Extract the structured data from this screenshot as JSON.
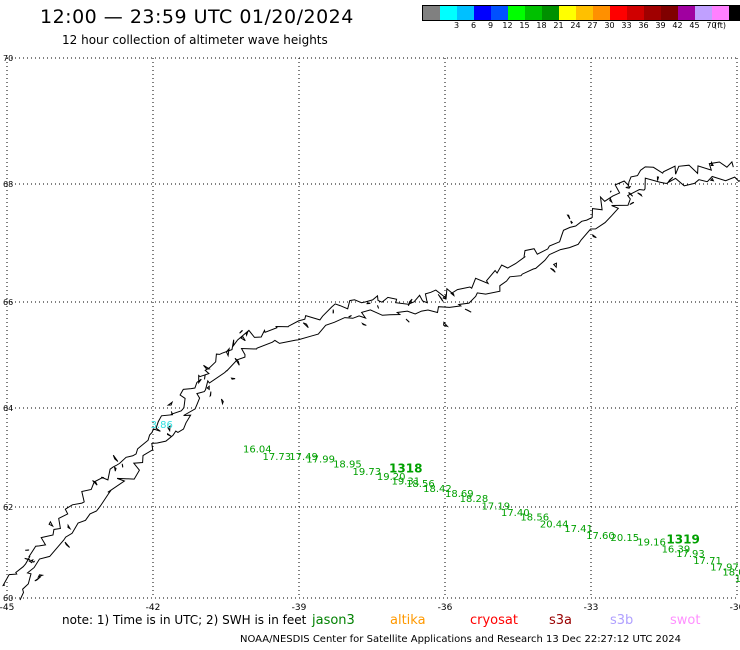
{
  "header": {
    "title": "12:00 — 23:59 UTC 01/20/2024",
    "subtitle": "12 hour collection of altimeter wave heights"
  },
  "colorbar": {
    "colors": [
      "#808080",
      "#00ffff",
      "#00c0ff",
      "#0000ff",
      "#0050ff",
      "#00ff00",
      "#00c000",
      "#009000",
      "#ffff00",
      "#ffc000",
      "#ff9000",
      "#ff0000",
      "#d00000",
      "#a00000",
      "#800000",
      "#a000a0",
      "#c0a0ff",
      "#ff80ff",
      "#000000"
    ],
    "labels": [
      "3",
      "6",
      "9",
      "12",
      "15",
      "18",
      "21",
      "24",
      "27",
      "30",
      "33",
      "36",
      "39",
      "42",
      "45",
      "70"
    ],
    "unit": "(ft)"
  },
  "axes": {
    "x_ticks": [
      "-45",
      "-42",
      "-39",
      "-36",
      "-33",
      "-30"
    ],
    "y_ticks": [
      "70",
      "68",
      "66",
      "64",
      "62",
      "60"
    ],
    "lon_range": [
      -45,
      -30
    ],
    "lat_range": [
      60,
      70
    ]
  },
  "tracks": {
    "cyan": {
      "color": "#30e0e0",
      "points": [
        {
          "lon": -42.05,
          "lat": 63.6,
          "label": "3.86"
        }
      ]
    },
    "green": {
      "color": "#00a000",
      "points": [
        {
          "lon": -40.15,
          "lat": 63.1,
          "label": "16.04"
        },
        {
          "lon": -39.75,
          "lat": 62.95,
          "label": "17.73"
        },
        {
          "lon": -39.2,
          "lat": 62.95,
          "label": "17.49"
        },
        {
          "lon": -38.85,
          "lat": 62.9,
          "label": "17.99"
        },
        {
          "lon": -38.3,
          "lat": 62.8,
          "label": "18.95"
        },
        {
          "lon": -37.9,
          "lat": 62.65,
          "label": "19.73"
        },
        {
          "lon": -37.4,
          "lat": 62.55,
          "label": "19.20"
        },
        {
          "lon": -37.1,
          "lat": 62.45,
          "label": "19.31"
        },
        {
          "lon": -36.8,
          "lat": 62.4,
          "label": "18.56"
        },
        {
          "lon": -36.45,
          "lat": 62.3,
          "label": "18.42"
        },
        {
          "lon": -36.0,
          "lat": 62.2,
          "label": "18.69"
        },
        {
          "lon": -35.7,
          "lat": 62.1,
          "label": "18.28"
        },
        {
          "lon": -35.25,
          "lat": 61.95,
          "label": "17.19"
        },
        {
          "lon": -34.85,
          "lat": 61.8,
          "label": "17.40"
        },
        {
          "lon": -34.45,
          "lat": 61.7,
          "label": "18.56"
        },
        {
          "lon": -34.05,
          "lat": 61.55,
          "label": "20.44"
        },
        {
          "lon": -33.55,
          "lat": 61.45,
          "label": "17.41"
        },
        {
          "lon": -33.1,
          "lat": 61.3,
          "label": "17.60"
        },
        {
          "lon": -32.6,
          "lat": 61.25,
          "label": "20.15"
        },
        {
          "lon": -32.05,
          "lat": 61.15,
          "label": "19.16"
        },
        {
          "lon": -31.55,
          "lat": 61.0,
          "label": "16.39"
        },
        {
          "lon": -31.25,
          "lat": 60.9,
          "label": "17.93"
        },
        {
          "lon": -30.9,
          "lat": 60.75,
          "label": "17.71"
        },
        {
          "lon": -30.55,
          "lat": 60.6,
          "label": "17.97"
        },
        {
          "lon": -30.3,
          "lat": 60.5,
          "label": "18.08"
        },
        {
          "lon": -30.05,
          "lat": 60.35,
          "label": "19"
        }
      ],
      "pass_labels": [
        {
          "lon": -37.15,
          "lat": 62.7,
          "label": "1318"
        },
        {
          "lon": -31.45,
          "lat": 61.2,
          "label": "1319"
        }
      ]
    }
  },
  "note": "note:  1) Time is in UTC; 2) SWH is in feet",
  "satellites": [
    {
      "name": "jason3",
      "color": "#008000"
    },
    {
      "name": "altika",
      "color": "#ff9900"
    },
    {
      "name": "cryosat",
      "color": "#ff0000"
    },
    {
      "name": "s3a",
      "color": "#990000"
    },
    {
      "name": "s3b",
      "color": "#b0a0ff"
    },
    {
      "name": "swot",
      "color": "#ff90ff"
    }
  ],
  "footer": "NOAA/NESDIS Center for Satellite Applications and Research    13 Dec 22:27:12 UTC 2024"
}
